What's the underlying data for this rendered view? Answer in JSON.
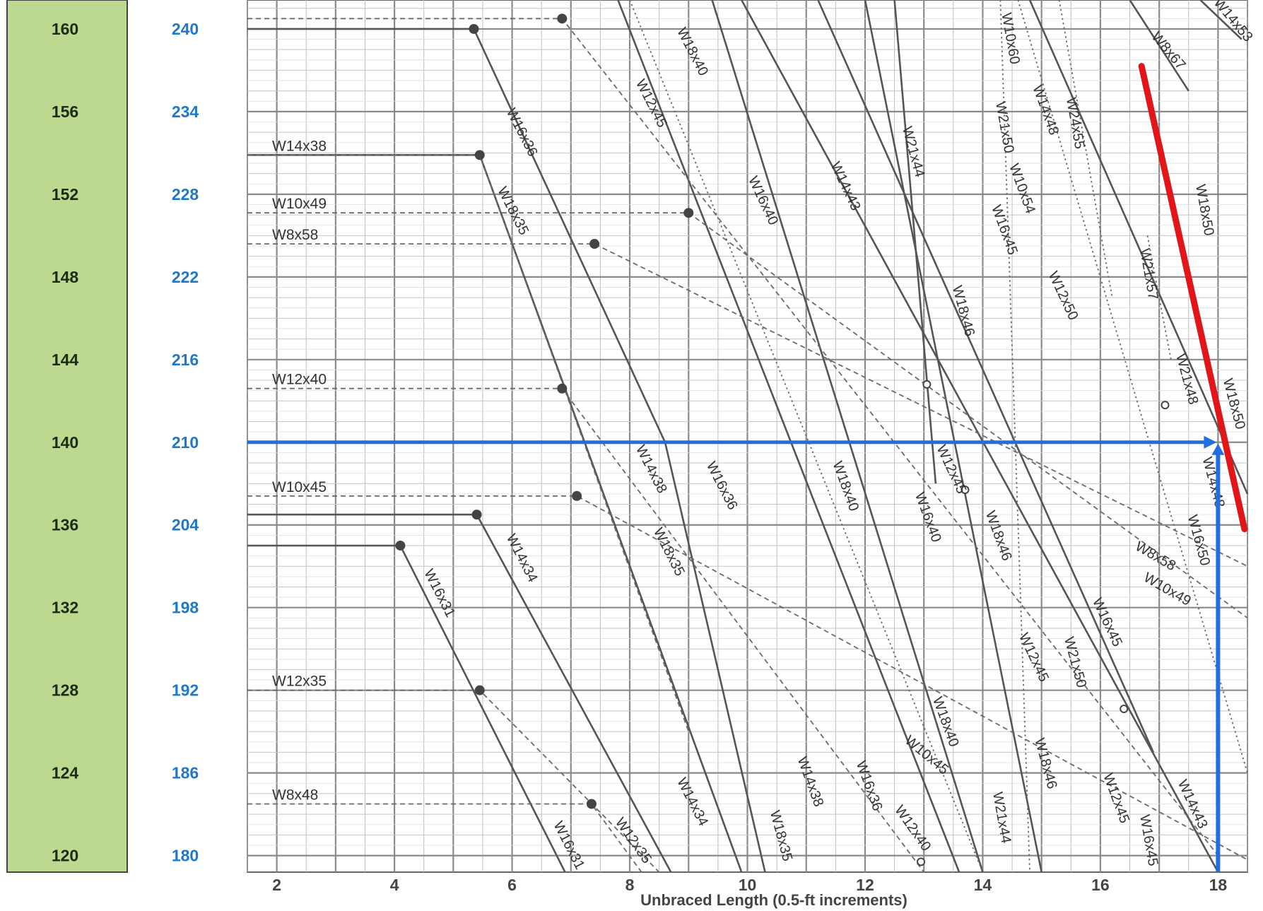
{
  "chart_data": {
    "type": "line",
    "title": "",
    "xlabel": "Unbraced Length (0.5-ft increments)",
    "ylabel": "",
    "xlim": [
      1.5,
      18.5
    ],
    "ylim": [
      119.2,
      161.4
    ],
    "x_ticks": [
      "2",
      "4",
      "6",
      "8",
      "10",
      "12",
      "14",
      "16",
      "18"
    ],
    "x_tick_values": [
      2,
      4,
      6,
      8,
      10,
      12,
      14,
      16,
      18
    ],
    "y_ticks_left": [
      "160",
      "156",
      "152",
      "148",
      "144",
      "140",
      "136",
      "132",
      "128",
      "124",
      "120"
    ],
    "y_tick_values": [
      160,
      156,
      152,
      148,
      144,
      140,
      136,
      132,
      128,
      124,
      120
    ],
    "y_ticks_right": [
      "240",
      "234",
      "228",
      "222",
      "216",
      "210",
      "204",
      "198",
      "192",
      "186",
      "180"
    ],
    "grid": true,
    "colors": {
      "left_axis_band": "#bcd98f",
      "right_axis_text": "#1f78c8",
      "highlight_curve": "#e0161b",
      "selection_lines": "#1f6fe0",
      "curves": "#555555"
    },
    "highlight": {
      "name": "W18x50",
      "x": [
        16.7,
        18.45
      ],
      "y": [
        158.2,
        135.8
      ]
    },
    "selection": {
      "x": 18,
      "y": 140
    },
    "series": [
      {
        "name": "W16x36",
        "style": "solid",
        "x": [
          1.5,
          5.35,
          8.6,
          10.3
        ],
        "y": [
          160,
          160,
          140,
          119.2
        ]
      },
      {
        "name": "W18x35",
        "style": "solid",
        "x": [
          1.5,
          5.45,
          9.9
        ],
        "y": [
          153.9,
          153.9,
          119.2
        ]
      },
      {
        "name": "W14x34",
        "style": "solid",
        "x": [
          1.5,
          5.4,
          8.7
        ],
        "y": [
          136.5,
          136.5,
          119.2
        ]
      },
      {
        "name": "W16x31",
        "style": "solid",
        "x": [
          1.5,
          4.1,
          6.9
        ],
        "y": [
          135,
          135,
          119.2
        ]
      },
      {
        "name": "W16x40",
        "style": "solid",
        "x": [
          7.8,
          13.6
        ],
        "y": [
          161.4,
          119.2
        ]
      },
      {
        "name": "W14x43",
        "style": "solid",
        "x": [
          9.9,
          18.0
        ],
        "y": [
          161.4,
          119.2
        ]
      },
      {
        "name": "W16x45",
        "style": "solid",
        "x": [
          11.2,
          16.9
        ],
        "y": [
          161.4,
          125.0
        ]
      },
      {
        "name": "W18x40",
        "style": "solid",
        "x": [
          9.4,
          14.0
        ],
        "y": [
          161.4,
          119.2
        ]
      },
      {
        "name": "W14x48",
        "style": "solid",
        "x": [
          14.8,
          18.5
        ],
        "y": [
          161.4,
          137.5
        ]
      },
      {
        "name": "W21x44",
        "style": "solid",
        "x": [
          12.0,
          15.0
        ],
        "y": [
          161.4,
          119.2
        ]
      },
      {
        "name": "W18x46",
        "style": "solid",
        "x": [
          12.5,
          13.2
        ],
        "y": [
          161.4,
          138.0
        ]
      },
      {
        "name": "W8x67",
        "style": "solid",
        "x": [
          16.5,
          17.5
        ],
        "y": [
          161.4,
          157.0
        ]
      },
      {
        "name": "W14x53",
        "style": "solid",
        "x": [
          17.7,
          18.4
        ],
        "y": [
          161.4,
          159.5
        ]
      },
      {
        "name": "W14x38",
        "style": "dashed",
        "x": [
          1.5,
          5.45,
          9.0
        ],
        "y": [
          153.9,
          153.9,
          126.0
        ]
      },
      {
        "name": "W10x49",
        "style": "dashed",
        "x": [
          1.5,
          9.0,
          18.5
        ],
        "y": [
          151.1,
          151.1,
          131.5
        ]
      },
      {
        "name": "W8x58",
        "style": "dashed",
        "x": [
          1.5,
          7.4,
          18.5
        ],
        "y": [
          149.6,
          149.6,
          134.0
        ]
      },
      {
        "name": "W12x40",
        "style": "dashed",
        "x": [
          1.5,
          6.85,
          13.0
        ],
        "y": [
          142.6,
          142.6,
          119.2
        ]
      },
      {
        "name": "W10x45",
        "style": "dashed",
        "x": [
          1.5,
          7.1,
          18.5
        ],
        "y": [
          137.4,
          137.4,
          119.8
        ]
      },
      {
        "name": "W12x35",
        "style": "dashed",
        "x": [
          1.5,
          5.45,
          8.5
        ],
        "y": [
          128,
          128,
          119.2
        ]
      },
      {
        "name": "W8x48",
        "style": "dashed",
        "x": [
          1.5,
          7.35,
          8.2
        ],
        "y": [
          122.5,
          122.5,
          119.2
        ]
      },
      {
        "name": "W12x45",
        "style": "dashed",
        "x": [
          1.5,
          6.85,
          18.0
        ],
        "y": [
          160.5,
          160.5,
          120.0
        ]
      },
      {
        "name": "W18x40",
        "style": "dotted",
        "x": [
          8.0,
          14.0
        ],
        "y": [
          161.4,
          119.2
        ]
      },
      {
        "name": "W21x50",
        "style": "dotted",
        "x": [
          14.3,
          14.8
        ],
        "y": [
          161.4,
          119.2
        ]
      },
      {
        "name": "W10x60",
        "style": "dotted",
        "x": [
          14.6,
          18.5
        ],
        "y": [
          161.4,
          124.0
        ]
      },
      {
        "name": "W24x55",
        "style": "dotted",
        "x": [
          15.3,
          16.2
        ],
        "y": [
          161.4,
          147.0
        ]
      },
      {
        "name": "W21x57",
        "style": "dotted",
        "x": [
          16.8,
          17.2
        ],
        "y": [
          150.0,
          144.0
        ]
      }
    ],
    "labels": [
      {
        "text": "W16x36",
        "x": 6.1,
        "y": 154.9,
        "rot": 63
      },
      {
        "text": "W18x35",
        "x": 5.95,
        "y": 151.1,
        "rot": 63
      },
      {
        "text": "W18x40",
        "x": 9.0,
        "y": 158.8,
        "rot": 63
      },
      {
        "text": "W12x45",
        "x": 8.3,
        "y": 156.3,
        "rot": 63
      },
      {
        "text": "W16x40",
        "x": 10.2,
        "y": 151.6,
        "rot": 65
      },
      {
        "text": "W14x43",
        "x": 11.6,
        "y": 152.3,
        "rot": 65
      },
      {
        "text": "W21x44",
        "x": 12.75,
        "y": 154.0,
        "rot": 75
      },
      {
        "text": "W10x60",
        "x": 14.4,
        "y": 159.5,
        "rot": 80
      },
      {
        "text": "W21x50",
        "x": 14.3,
        "y": 155.2,
        "rot": 80
      },
      {
        "text": "W14x48",
        "x": 15.0,
        "y": 156.0,
        "rot": 70
      },
      {
        "text": "W24x55",
        "x": 15.5,
        "y": 155.4,
        "rot": 80
      },
      {
        "text": "W10x54",
        "x": 14.6,
        "y": 152.2,
        "rot": 70
      },
      {
        "text": "W16x45",
        "x": 14.3,
        "y": 150.2,
        "rot": 70
      },
      {
        "text": "W8x67",
        "x": 17.1,
        "y": 158.8,
        "rot": 50
      },
      {
        "text": "W14x53",
        "x": 18.2,
        "y": 160.3,
        "rot": 50
      },
      {
        "text": "W18x50",
        "x": 17.7,
        "y": 151.2,
        "rot": 80
      },
      {
        "text": "W21x57",
        "x": 16.75,
        "y": 148.1,
        "rot": 80
      },
      {
        "text": "W12x50",
        "x": 15.3,
        "y": 147.0,
        "rot": 65
      },
      {
        "text": "W18x46",
        "x": 13.6,
        "y": 146.3,
        "rot": 75
      },
      {
        "text": "W21x48",
        "x": 17.4,
        "y": 143.0,
        "rot": 75
      },
      {
        "text": "W18x50",
        "x": 18.2,
        "y": 141.8,
        "rot": 75
      },
      {
        "text": "W14x48",
        "x": 17.85,
        "y": 138.0,
        "rot": 75
      },
      {
        "text": "W16x50",
        "x": 17.6,
        "y": 135.2,
        "rot": 75
      },
      {
        "text": "W14x38",
        "x": 8.3,
        "y": 138.6,
        "rot": 63
      },
      {
        "text": "W16x36",
        "x": 9.5,
        "y": 137.8,
        "rot": 63
      },
      {
        "text": "W18x35",
        "x": 8.6,
        "y": 134.6,
        "rot": 63
      },
      {
        "text": "W18x40",
        "x": 11.6,
        "y": 137.8,
        "rot": 70
      },
      {
        "text": "W12x45",
        "x": 13.4,
        "y": 138.6,
        "rot": 65
      },
      {
        "text": "W16x40",
        "x": 13.0,
        "y": 136.3,
        "rot": 70
      },
      {
        "text": "W18x46",
        "x": 14.2,
        "y": 135.4,
        "rot": 70
      },
      {
        "text": "W8x58",
        "x": 16.9,
        "y": 134.3,
        "rot": 30
      },
      {
        "text": "W10x49",
        "x": 17.1,
        "y": 132.7,
        "rot": 30
      },
      {
        "text": "W16x45",
        "x": 16.05,
        "y": 131.2,
        "rot": 65
      },
      {
        "text": "W12x45",
        "x": 14.8,
        "y": 129.5,
        "rot": 65
      },
      {
        "text": "W21x50",
        "x": 15.5,
        "y": 129.3,
        "rot": 75
      },
      {
        "text": "W14x34",
        "x": 6.1,
        "y": 134.3,
        "rot": 63
      },
      {
        "text": "W16x31",
        "x": 4.7,
        "y": 132.6,
        "rot": 63
      },
      {
        "text": "W18x40",
        "x": 13.3,
        "y": 126.4,
        "rot": 70
      },
      {
        "text": "W10x45",
        "x": 13.0,
        "y": 124.7,
        "rot": 40
      },
      {
        "text": "W14x38",
        "x": 11.0,
        "y": 123.5,
        "rot": 70
      },
      {
        "text": "W16x36",
        "x": 12.0,
        "y": 123.3,
        "rot": 70
      },
      {
        "text": "W18x46",
        "x": 15.0,
        "y": 124.4,
        "rot": 75
      },
      {
        "text": "W21x44",
        "x": 14.25,
        "y": 121.8,
        "rot": 80
      },
      {
        "text": "W12x45",
        "x": 16.2,
        "y": 122.7,
        "rot": 70
      },
      {
        "text": "W14x43",
        "x": 17.5,
        "y": 122.4,
        "rot": 65
      },
      {
        "text": "W16x45",
        "x": 16.75,
        "y": 120.7,
        "rot": 80
      },
      {
        "text": "W12x40",
        "x": 12.75,
        "y": 121.2,
        "rot": 55
      },
      {
        "text": "W14x34",
        "x": 9.0,
        "y": 122.5,
        "rot": 63
      },
      {
        "text": "W18x35",
        "x": 10.5,
        "y": 120.9,
        "rot": 75
      },
      {
        "text": "W12x35",
        "x": 8.0,
        "y": 120.6,
        "rot": 55
      },
      {
        "text": "W16x31",
        "x": 6.9,
        "y": 120.4,
        "rot": 63
      }
    ],
    "edge_labels": [
      {
        "text": "W14x38",
        "y": 153.9
      },
      {
        "text": "W10x49",
        "y": 151.1
      },
      {
        "text": "W8x58",
        "y": 149.6
      },
      {
        "text": "W12x40",
        "y": 142.6
      },
      {
        "text": "W10x45",
        "y": 137.4
      },
      {
        "text": "W12x35",
        "y": 128
      },
      {
        "text": "W8x48",
        "y": 122.5
      }
    ],
    "markers": [
      {
        "x": 5.35,
        "y": 160,
        "fill": "filled"
      },
      {
        "x": 6.85,
        "y": 160.5,
        "fill": "filled"
      },
      {
        "x": 5.45,
        "y": 153.9,
        "fill": "filled"
      },
      {
        "x": 9.0,
        "y": 151.1,
        "fill": "filled"
      },
      {
        "x": 7.4,
        "y": 149.6,
        "fill": "filled"
      },
      {
        "x": 6.85,
        "y": 142.6,
        "fill": "filled"
      },
      {
        "x": 7.1,
        "y": 137.4,
        "fill": "filled"
      },
      {
        "x": 5.4,
        "y": 136.5,
        "fill": "filled"
      },
      {
        "x": 4.1,
        "y": 135.0,
        "fill": "filled"
      },
      {
        "x": 5.45,
        "y": 128,
        "fill": "filled"
      },
      {
        "x": 7.35,
        "y": 122.5,
        "fill": "filled"
      },
      {
        "x": 13.05,
        "y": 142.8,
        "fill": "open"
      },
      {
        "x": 17.1,
        "y": 141.8,
        "fill": "open"
      },
      {
        "x": 13.7,
        "y": 137.7,
        "fill": "open"
      },
      {
        "x": 16.4,
        "y": 127.1,
        "fill": "open"
      },
      {
        "x": 12.95,
        "y": 119.7,
        "fill": "open"
      }
    ]
  }
}
